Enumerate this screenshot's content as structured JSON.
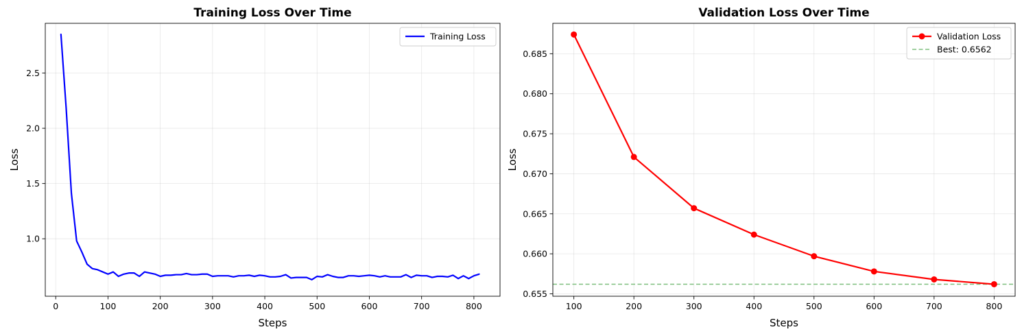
{
  "chart_data": [
    {
      "type": "line",
      "title": "Training Loss Over Time",
      "xlabel": "Steps",
      "ylabel": "Loss",
      "xlim": [
        -20,
        850
      ],
      "ylim": [
        0.48,
        2.95
      ],
      "xticks": [
        0,
        100,
        200,
        300,
        400,
        500,
        600,
        700,
        800
      ],
      "xtick_labels": [
        "0",
        "100",
        "200",
        "300",
        "400",
        "500",
        "600",
        "700",
        "800"
      ],
      "yticks": [
        1.0,
        1.5,
        2.0,
        2.5
      ],
      "ytick_labels": [
        "1.0",
        "1.5",
        "2.0",
        "2.5"
      ],
      "grid": true,
      "legend_position": "top-right",
      "series": [
        {
          "name": "Training Loss",
          "color": "#0000ff",
          "x": [
            10,
            20,
            30,
            40,
            50,
            60,
            70,
            80,
            90,
            100,
            110,
            120,
            130,
            140,
            150,
            160,
            170,
            180,
            190,
            200,
            210,
            220,
            230,
            240,
            250,
            260,
            270,
            280,
            290,
            300,
            310,
            320,
            330,
            340,
            350,
            360,
            370,
            380,
            390,
            400,
            410,
            420,
            430,
            440,
            450,
            460,
            470,
            480,
            490,
            500,
            510,
            520,
            530,
            540,
            550,
            560,
            570,
            580,
            590,
            600,
            610,
            620,
            630,
            640,
            650,
            660,
            670,
            680,
            690,
            700,
            710,
            720,
            730,
            740,
            750,
            760,
            770,
            780,
            790,
            800,
            810
          ],
          "y": [
            2.85,
            2.18,
            1.41,
            0.98,
            0.88,
            0.77,
            0.73,
            0.72,
            0.7,
            0.68,
            0.7,
            0.66,
            0.68,
            0.69,
            0.69,
            0.66,
            0.7,
            0.69,
            0.68,
            0.66,
            0.67,
            0.67,
            0.675,
            0.675,
            0.685,
            0.675,
            0.675,
            0.68,
            0.68,
            0.66,
            0.665,
            0.665,
            0.665,
            0.655,
            0.665,
            0.665,
            0.67,
            0.66,
            0.67,
            0.665,
            0.655,
            0.655,
            0.66,
            0.675,
            0.645,
            0.65,
            0.65,
            0.65,
            0.63,
            0.66,
            0.655,
            0.675,
            0.66,
            0.65,
            0.65,
            0.665,
            0.665,
            0.66,
            0.665,
            0.67,
            0.665,
            0.655,
            0.665,
            0.655,
            0.655,
            0.655,
            0.675,
            0.65,
            0.67,
            0.665,
            0.665,
            0.65,
            0.66,
            0.66,
            0.655,
            0.67,
            0.64,
            0.665,
            0.64,
            0.665,
            0.68
          ]
        }
      ]
    },
    {
      "type": "line",
      "title": "Validation Loss Over Time",
      "xlabel": "Steps",
      "ylabel": "Loss",
      "xlim": [
        65,
        835
      ],
      "ylim": [
        0.6547,
        0.6888
      ],
      "xticks": [
        100,
        200,
        300,
        400,
        500,
        600,
        700,
        800
      ],
      "xtick_labels": [
        "100",
        "200",
        "300",
        "400",
        "500",
        "600",
        "700",
        "800"
      ],
      "yticks": [
        0.655,
        0.66,
        0.665,
        0.67,
        0.675,
        0.68,
        0.685
      ],
      "ytick_labels": [
        "0.655",
        "0.660",
        "0.665",
        "0.670",
        "0.675",
        "0.680",
        "0.685"
      ],
      "grid": true,
      "legend_position": "top-right",
      "series": [
        {
          "name": "Validation Loss",
          "color": "#ff0000",
          "markers": true,
          "x": [
            100,
            200,
            300,
            400,
            500,
            600,
            700,
            800
          ],
          "y": [
            0.6874,
            0.6721,
            0.6657,
            0.6624,
            0.6597,
            0.6578,
            0.6568,
            0.6562
          ]
        }
      ],
      "hlines": [
        {
          "name": "Best: 0.6562",
          "y": 0.6562,
          "color": "#7fbf7f",
          "style": "dashed"
        }
      ]
    }
  ]
}
